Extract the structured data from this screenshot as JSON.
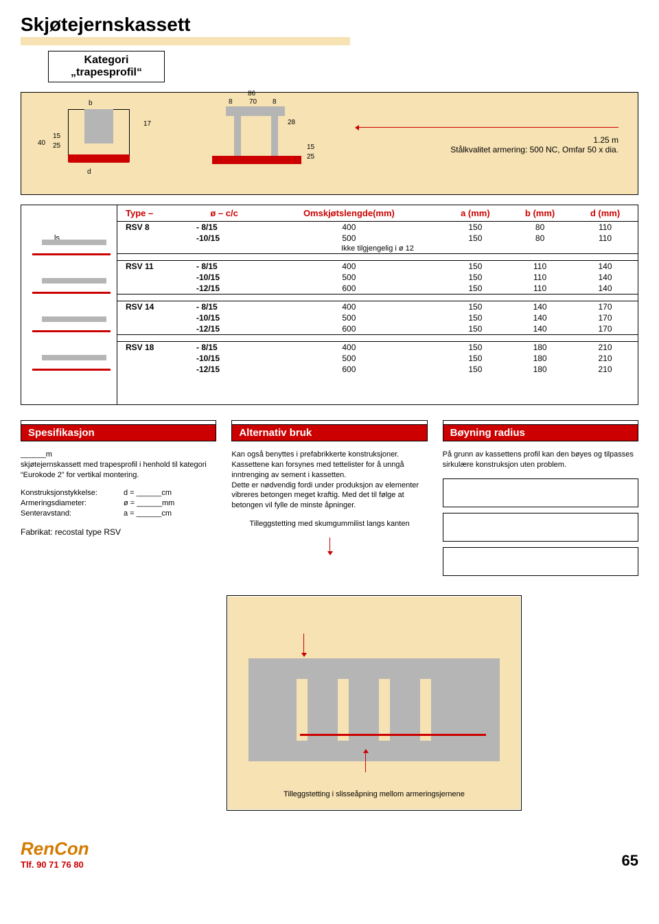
{
  "title": "Skjøtejernskassett",
  "category": {
    "line1": "Kategori",
    "line2": "„trapesprofil“"
  },
  "diagram": {
    "left": {
      "b": "b",
      "d": "d",
      "n40": "40",
      "n15": "15",
      "n25": "25",
      "n17": "17"
    },
    "mid": {
      "n8a": "8",
      "n70": "70",
      "n8b": "8",
      "n86": "86",
      "n28": "28",
      "n15": "15",
      "n25": "25"
    },
    "right_line1": "1.25 m",
    "right_line2": "Stålkvalitet armering: 500 NC, Omfar 50 x dia."
  },
  "table": {
    "ls_label": "ls",
    "headers": [
      "Type –",
      "ø – c/c",
      "Omskjøtslengde(mm)",
      "a (mm)",
      "b (mm)",
      "d (mm)"
    ],
    "groups": [
      {
        "type": "RSV 8",
        "rows": [
          [
            "-  8/15",
            "400",
            "150",
            "80",
            "110"
          ],
          [
            "-10/15",
            "500",
            "150",
            "80",
            "110"
          ]
        ],
        "note": "Ikke tilgjengelig i ø 12"
      },
      {
        "type": "RSV 11",
        "rows": [
          [
            "-  8/15",
            "400",
            "150",
            "110",
            "140"
          ],
          [
            "-10/15",
            "500",
            "150",
            "110",
            "140"
          ],
          [
            "-12/15",
            "600",
            "150",
            "110",
            "140"
          ]
        ]
      },
      {
        "type": "RSV 14",
        "rows": [
          [
            "-  8/15",
            "400",
            "150",
            "140",
            "170"
          ],
          [
            "-10/15",
            "500",
            "150",
            "140",
            "170"
          ],
          [
            "-12/15",
            "600",
            "150",
            "140",
            "170"
          ]
        ]
      },
      {
        "type": "RSV 18",
        "rows": [
          [
            "-  8/15",
            "400",
            "150",
            "180",
            "210"
          ],
          [
            "-10/15",
            "500",
            "150",
            "180",
            "210"
          ],
          [
            "-12/15",
            "600",
            "150",
            "180",
            "210"
          ]
        ]
      }
    ]
  },
  "columns": {
    "spec": {
      "heading": "Spesifikasjon",
      "text1a": "______m",
      "text1b": "skjøtejernskassett med trapesprofil i henhold til kategori “Eurokode 2” for vertikal montering.",
      "k_label": "Konstruksjonstykkelse:",
      "k_val": "d = ______cm",
      "a_label": "Armeringsdiameter:",
      "a_val": "ø = ______mm",
      "s_label": "Senteravstand:",
      "s_val": "a = ______cm",
      "fabrikat": "Fabrikat: recostal type RSV"
    },
    "alt": {
      "heading": "Alternativ bruk",
      "para": "Kan også benyttes i prefabrikkerte konstruksjoner. Kassettene kan forsynes med tettelister for å unngå inntrenging av sement i kassetten.\nDette er nødvendig fordi under produksjon av elementer vibreres betongen meget kraftig. Med det til følge at betongen vil fylle de minste åpninger.",
      "sub": "Tilleggstetting med skumgummilist langs kanten"
    },
    "boy": {
      "heading": "Bøyning radius",
      "para": "På grunn av kassettens profil kan den bøyes og tilpasses sirkulære konstruksjon uten problem."
    }
  },
  "bigyellow": {
    "top": "Tilleggstetting med skumgummilist langs kanten",
    "bottom": "Tilleggstetting i slisseåpning mellom armeringsjernene"
  },
  "footer": {
    "brand": "RenCon",
    "phone": "Tlf. 90 71 76 80",
    "page": "65"
  },
  "colors": {
    "yellow": "#f6e2b3",
    "red": "#cc0000",
    "gray": "#b5b5b5",
    "orange": "#d47a00"
  }
}
